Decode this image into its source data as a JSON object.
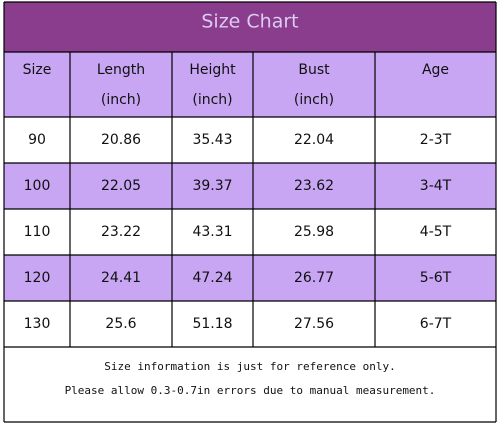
{
  "title": "Size Chart",
  "header": [
    [
      "Size"
    ],
    [
      "Length",
      "(inch)"
    ],
    [
      "Height",
      "(inch)"
    ],
    [
      "Bust",
      "(inch)"
    ],
    [
      "Age"
    ]
  ],
  "rows": [
    [
      "90",
      "20.86",
      "35.43",
      "22.04",
      "2-3T"
    ],
    [
      "100",
      "22.05",
      "39.37",
      "23.62",
      "3-4T"
    ],
    [
      "110",
      "23.22",
      "43.31",
      "25.98",
      "4-5T"
    ],
    [
      "120",
      "24.41",
      "47.24",
      "26.77",
      "5-6T"
    ],
    [
      "130",
      "25.6",
      "51.18",
      "27.56",
      "6-7T"
    ]
  ],
  "notes": [
    "Size information is just for reference only.",
    "Please allow 0.3-0.7in errors due to manual measurement."
  ]
}
